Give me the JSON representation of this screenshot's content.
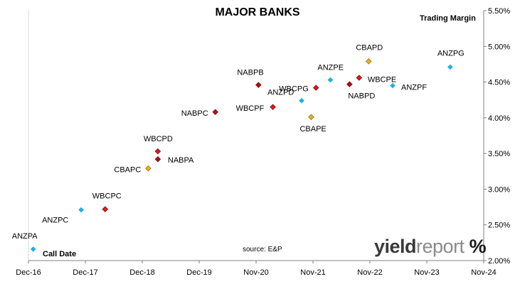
{
  "chart_data": {
    "type": "scatter",
    "title": "MAJOR BANKS",
    "xlabel": "Call Date",
    "ylabel": "Trading Margin",
    "xlim": [
      "2016-12",
      "2024-11"
    ],
    "ylim": [
      2.0,
      5.5
    ],
    "y_ticks": [
      "2.00%",
      "2.50%",
      "3.00%",
      "3.50%",
      "4.00%",
      "4.50%",
      "5.00%",
      "5.50%"
    ],
    "x_ticks": [
      "Dec-16",
      "Dec-17",
      "Dec-18",
      "Dec-19",
      "Nov-20",
      "Nov-21",
      "Nov-22",
      "Nov-23",
      "Nov-24"
    ],
    "grid": false,
    "y_axis_side": "right",
    "series": [
      {
        "bank": "ANZ",
        "color": "#1ab0e8",
        "shape": "diamond",
        "points": [
          {
            "label": "ANZPA",
            "x": "2017-01",
            "y": 2.16
          },
          {
            "label": "ANZPC",
            "x": "2017-11",
            "y": 2.71
          },
          {
            "label": "ANZPD",
            "x": "2021-09",
            "y": 4.24
          },
          {
            "label": "ANZPE",
            "x": "2022-03",
            "y": 4.53
          },
          {
            "label": "ANZPF",
            "x": "2023-04",
            "y": 4.45
          },
          {
            "label": "ANZPG",
            "x": "2024-04",
            "y": 4.71
          }
        ]
      },
      {
        "bank": "WBC",
        "color": "#e8151b",
        "shape": "diamond",
        "points": [
          {
            "label": "WBCPC",
            "x": "2018-04",
            "y": 2.72
          },
          {
            "label": "WBCPD",
            "x": "2019-03",
            "y": 3.53
          },
          {
            "label": "WBCPF",
            "x": "2021-03",
            "y": 4.15
          },
          {
            "label": "WBCPG",
            "x": "2021-12",
            "y": 4.42
          },
          {
            "label": "WBCPE",
            "x": "2022-09",
            "y": 4.56
          }
        ]
      },
      {
        "bank": "NAB",
        "color": "#b01018",
        "shape": "diamond",
        "points": [
          {
            "label": "NABPA",
            "x": "2019-03",
            "y": 3.42
          },
          {
            "label": "NABPC",
            "x": "2020-03",
            "y": 4.08
          },
          {
            "label": "NABPB",
            "x": "2020-12",
            "y": 4.46
          },
          {
            "label": "NABPD",
            "x": "2022-07",
            "y": 4.47
          }
        ]
      },
      {
        "bank": "CBA",
        "color": "#e8b018",
        "shape": "diamond",
        "points": [
          {
            "label": "CBAPC",
            "x": "2019-01",
            "y": 3.29
          },
          {
            "label": "CBAPE",
            "x": "2021-11",
            "y": 4.01
          },
          {
            "label": "CBAPD",
            "x": "2022-11",
            "y": 4.79
          }
        ]
      }
    ]
  },
  "footer": {
    "source": "source: E&P"
  },
  "brand": {
    "logo_part1": "yield",
    "logo_part2": "report",
    "logo_symbol": "%"
  }
}
